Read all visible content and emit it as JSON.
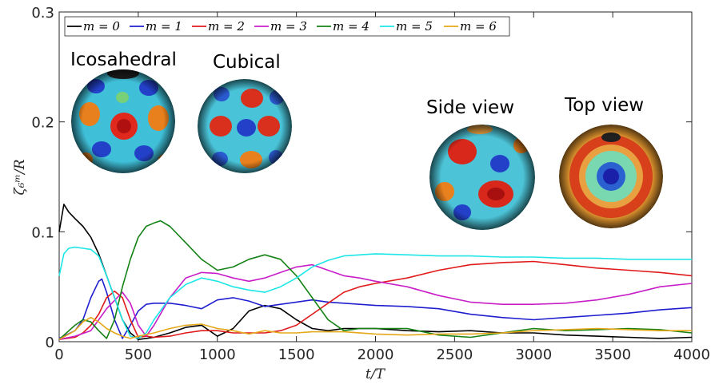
{
  "chart_data": {
    "type": "line",
    "xlabel": "t/T",
    "ylabel": "ζ₆ᵐ/R",
    "xlim": [
      0,
      4000
    ],
    "ylim": [
      0,
      0.3
    ],
    "xticks": [
      0,
      500,
      1000,
      1500,
      2000,
      2500,
      3000,
      3500,
      4000
    ],
    "yticks": [
      0,
      0.1,
      0.2,
      0.3
    ],
    "ytick_labels": [
      "0",
      "0.1",
      "0.2",
      "0.3"
    ],
    "grid": false,
    "legend_position": "top-left, horizontal",
    "series": [
      {
        "name": "m = 0",
        "color": "#000000",
        "x": [
          0,
          30,
          60,
          100,
          150,
          200,
          250,
          300,
          350,
          400,
          450,
          500,
          550,
          600,
          700,
          800,
          900,
          1000,
          1100,
          1200,
          1300,
          1400,
          1500,
          1600,
          1700,
          1800,
          2000,
          2200,
          2400,
          2600,
          2800,
          3000,
          3200,
          3400,
          3600,
          3800,
          4000
        ],
        "y": [
          0.1,
          0.125,
          0.118,
          0.112,
          0.105,
          0.095,
          0.08,
          0.06,
          0.04,
          0.02,
          0.008,
          0.002,
          0.003,
          0.004,
          0.008,
          0.013,
          0.015,
          0.005,
          0.012,
          0.028,
          0.033,
          0.03,
          0.02,
          0.012,
          0.01,
          0.012,
          0.012,
          0.01,
          0.009,
          0.01,
          0.008,
          0.008,
          0.006,
          0.005,
          0.004,
          0.003,
          0.004
        ]
      },
      {
        "name": "m = 1",
        "color": "#1f1fd0",
        "x": [
          0,
          100,
          150,
          200,
          250,
          270,
          300,
          350,
          400,
          450,
          500,
          550,
          600,
          700,
          800,
          900,
          1000,
          1100,
          1200,
          1300,
          1400,
          1500,
          1600,
          1700,
          1800,
          2000,
          2200,
          2400,
          2600,
          2800,
          3000,
          3200,
          3400,
          3600,
          3800,
          4000
        ],
        "y": [
          0.003,
          0.01,
          0.02,
          0.04,
          0.055,
          0.057,
          0.045,
          0.02,
          0.003,
          0.015,
          0.028,
          0.034,
          0.035,
          0.035,
          0.033,
          0.03,
          0.038,
          0.04,
          0.037,
          0.032,
          0.034,
          0.036,
          0.038,
          0.036,
          0.035,
          0.033,
          0.032,
          0.03,
          0.025,
          0.022,
          0.02,
          0.022,
          0.024,
          0.026,
          0.029,
          0.031
        ]
      },
      {
        "name": "m = 2",
        "color": "#e01a1a",
        "x": [
          0,
          100,
          150,
          200,
          250,
          300,
          350,
          400,
          450,
          500,
          550,
          600,
          700,
          800,
          900,
          1000,
          1100,
          1200,
          1300,
          1400,
          1500,
          1600,
          1700,
          1800,
          1900,
          2000,
          2200,
          2400,
          2600,
          2800,
          3000,
          3200,
          3400,
          3600,
          3800,
          4000
        ],
        "y": [
          0.002,
          0.004,
          0.008,
          0.015,
          0.025,
          0.04,
          0.046,
          0.04,
          0.02,
          0.004,
          0.005,
          0.004,
          0.005,
          0.008,
          0.01,
          0.01,
          0.008,
          0.008,
          0.008,
          0.01,
          0.015,
          0.025,
          0.035,
          0.045,
          0.05,
          0.053,
          0.058,
          0.065,
          0.07,
          0.072,
          0.073,
          0.07,
          0.067,
          0.065,
          0.063,
          0.06
        ]
      },
      {
        "name": "m = 3",
        "color": "#c81ec8",
        "x": [
          0,
          100,
          200,
          300,
          400,
          450,
          500,
          550,
          600,
          700,
          800,
          900,
          1000,
          1100,
          1200,
          1300,
          1400,
          1500,
          1600,
          1700,
          1800,
          1900,
          2000,
          2200,
          2400,
          2600,
          2800,
          3000,
          3200,
          3400,
          3600,
          3800,
          4000
        ],
        "y": [
          0.002,
          0.005,
          0.01,
          0.03,
          0.045,
          0.035,
          0.015,
          0.005,
          0.015,
          0.04,
          0.058,
          0.063,
          0.062,
          0.058,
          0.055,
          0.058,
          0.063,
          0.068,
          0.07,
          0.065,
          0.06,
          0.058,
          0.055,
          0.05,
          0.042,
          0.036,
          0.034,
          0.034,
          0.035,
          0.038,
          0.043,
          0.05,
          0.053
        ]
      },
      {
        "name": "m = 4",
        "color": "#148214",
        "x": [
          0,
          100,
          150,
          200,
          250,
          300,
          350,
          400,
          450,
          500,
          550,
          600,
          640,
          700,
          800,
          900,
          1000,
          1100,
          1200,
          1300,
          1400,
          1500,
          1600,
          1700,
          1800,
          1900,
          2000,
          2200,
          2400,
          2600,
          2800,
          3000,
          3200,
          3400,
          3600,
          3800,
          4000
        ],
        "y": [
          0.002,
          0.015,
          0.02,
          0.018,
          0.01,
          0.003,
          0.02,
          0.05,
          0.075,
          0.095,
          0.105,
          0.108,
          0.11,
          0.105,
          0.09,
          0.075,
          0.065,
          0.068,
          0.075,
          0.079,
          0.075,
          0.06,
          0.04,
          0.02,
          0.01,
          0.012,
          0.012,
          0.012,
          0.006,
          0.004,
          0.008,
          0.012,
          0.01,
          0.011,
          0.012,
          0.011,
          0.008
        ]
      },
      {
        "name": "m = 5",
        "color": "#1ee6e6",
        "x": [
          0,
          30,
          60,
          100,
          150,
          200,
          250,
          300,
          350,
          400,
          450,
          500,
          550,
          600,
          700,
          800,
          900,
          1000,
          1100,
          1200,
          1300,
          1400,
          1500,
          1600,
          1700,
          1800,
          2000,
          2200,
          2400,
          2600,
          2800,
          3000,
          3200,
          3400,
          3600,
          3800,
          4000
        ],
        "y": [
          0.06,
          0.08,
          0.085,
          0.086,
          0.085,
          0.084,
          0.078,
          0.06,
          0.04,
          0.02,
          0.005,
          0.003,
          0.008,
          0.02,
          0.04,
          0.052,
          0.058,
          0.055,
          0.05,
          0.047,
          0.045,
          0.05,
          0.058,
          0.068,
          0.074,
          0.078,
          0.08,
          0.079,
          0.078,
          0.078,
          0.077,
          0.077,
          0.076,
          0.076,
          0.075,
          0.075,
          0.075
        ]
      },
      {
        "name": "m = 6",
        "color": "#e6a81a",
        "x": [
          0,
          100,
          150,
          200,
          250,
          300,
          350,
          400,
          450,
          500,
          600,
          700,
          800,
          900,
          1000,
          1100,
          1200,
          1300,
          1400,
          1500,
          1600,
          1800,
          2000,
          2200,
          2400,
          2600,
          2800,
          3000,
          3200,
          3400,
          3600,
          3800,
          4000
        ],
        "y": [
          0.002,
          0.01,
          0.018,
          0.022,
          0.018,
          0.012,
          0.008,
          0.005,
          0.003,
          0.005,
          0.008,
          0.012,
          0.015,
          0.016,
          0.012,
          0.01,
          0.007,
          0.01,
          0.008,
          0.008,
          0.009,
          0.009,
          0.007,
          0.006,
          0.007,
          0.007,
          0.008,
          0.01,
          0.011,
          0.012,
          0.011,
          0.01,
          0.01
        ]
      }
    ],
    "annotations": [
      "Icosahedral",
      "Cubical",
      "Side view",
      "Top view"
    ]
  },
  "legend": {
    "items": [
      "m = 0",
      "m = 1",
      "m = 2",
      "m = 3",
      "m = 4",
      "m = 5",
      "m = 6"
    ]
  },
  "insets": {
    "icosahedral_label": "Icosahedral",
    "cubical_label": "Cubical",
    "side_view_label": "Side view",
    "top_view_label": "Top view"
  },
  "axes": {
    "xlabel": "t/T",
    "ylabel": "ζ₆ᵐ/R"
  }
}
